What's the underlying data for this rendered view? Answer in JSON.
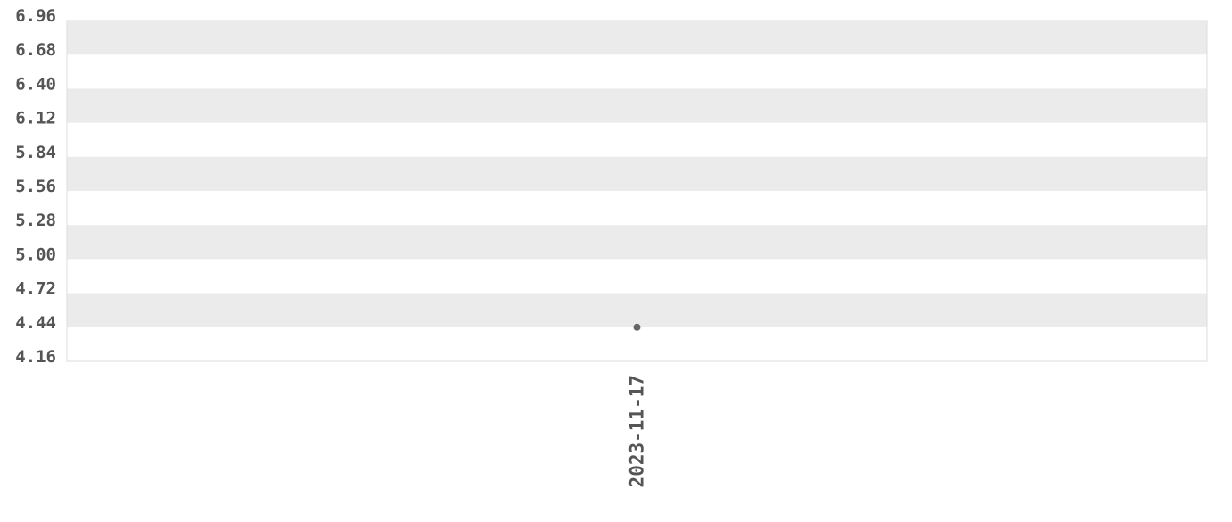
{
  "chart_data": {
    "type": "scatter",
    "categories": [
      "2023-11-17"
    ],
    "values": [
      4.44
    ],
    "ylim": [
      4.16,
      6.96
    ],
    "y_ticks": [
      "6.96",
      "6.68",
      "6.40",
      "6.12",
      "5.84",
      "5.56",
      "5.28",
      "5.00",
      "4.72",
      "4.44",
      "4.16"
    ],
    "x_tick_labels": [
      "2023-11-17"
    ],
    "grid": "alternating horizontal bands",
    "legend": "none",
    "colors": {
      "band": "#ebebeb",
      "point": "#666666",
      "text": "#555555",
      "border": "#dddddd"
    }
  }
}
